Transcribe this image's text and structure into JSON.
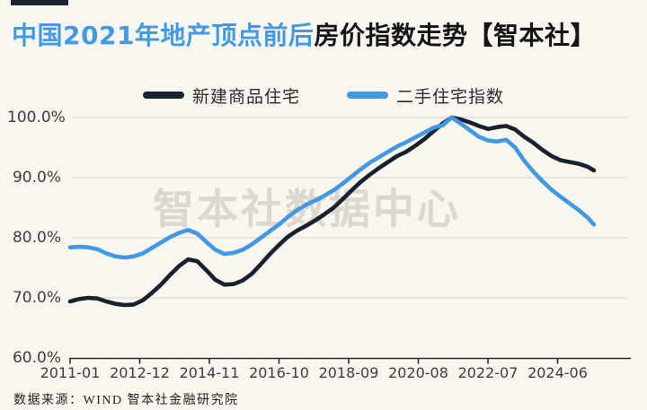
{
  "page": {
    "background": "#f9f6f0"
  },
  "header": {
    "accent_bar_color": "#1a2433",
    "title_part1": "中国2021年地产顶点前后",
    "title_part2": "房价指数走势【智本社】",
    "title_part1_color": "#429ae6",
    "title_part2_color": "#151515"
  },
  "watermark": {
    "text": "智本社数据中心"
  },
  "footer": {
    "source_text": "数据来源：WIND 智本社金融研究院"
  },
  "chart_data": {
    "type": "line",
    "title": "中国2021年地产顶点前后房价指数走势【智本社】",
    "grid": true,
    "legend_position": "top",
    "colors": {
      "new_homes": "#18222f",
      "secondhand": "#4298e3",
      "gridline": "#d9d6d0",
      "axis_line": "#2b2b2b",
      "tick_text": "#3d3d3d"
    },
    "y_axis": {
      "tick_labels": [
        "100.0%",
        "90.0%",
        "80.0%",
        "70.0%",
        "60.0%"
      ],
      "tick_values": [
        100,
        90,
        80,
        70,
        60
      ],
      "range": [
        60,
        100
      ],
      "unit": "%"
    },
    "x_axis": {
      "tick_labels": [
        "2011-01",
        "2012-12",
        "2014-11",
        "2016-10",
        "2018-09",
        "2020-08",
        "2022-07",
        "2024-06"
      ],
      "tick_months": [
        0,
        23,
        46,
        69,
        92,
        115,
        138,
        161
      ],
      "start_label": "2011-01",
      "end_month": 173
    },
    "legend": [
      {
        "name": "新建商品住宅",
        "color": "#18222f"
      },
      {
        "name": "二手住宅指数",
        "color": "#4298e3"
      }
    ],
    "series": [
      {
        "name": "新建商品住宅",
        "color": "#18222f",
        "points": [
          [
            0,
            69.4
          ],
          [
            3,
            69.8
          ],
          [
            6,
            70.0
          ],
          [
            9,
            69.9
          ],
          [
            12,
            69.4
          ],
          [
            15,
            69.0
          ],
          [
            18,
            68.8
          ],
          [
            21,
            68.9
          ],
          [
            24,
            69.6
          ],
          [
            27,
            70.8
          ],
          [
            30,
            72.2
          ],
          [
            33,
            73.8
          ],
          [
            36,
            75.3
          ],
          [
            39,
            76.4
          ],
          [
            42,
            76.1
          ],
          [
            45,
            74.6
          ],
          [
            48,
            73.0
          ],
          [
            51,
            72.2
          ],
          [
            54,
            72.3
          ],
          [
            57,
            72.9
          ],
          [
            60,
            74.0
          ],
          [
            63,
            75.6
          ],
          [
            66,
            77.3
          ],
          [
            69,
            78.8
          ],
          [
            72,
            80.2
          ],
          [
            75,
            81.2
          ],
          [
            78,
            82.0
          ],
          [
            81,
            82.9
          ],
          [
            84,
            83.9
          ],
          [
            87,
            85.0
          ],
          [
            90,
            86.4
          ],
          [
            93,
            87.9
          ],
          [
            96,
            89.3
          ],
          [
            99,
            90.5
          ],
          [
            102,
            91.6
          ],
          [
            105,
            92.6
          ],
          [
            108,
            93.6
          ],
          [
            111,
            94.3
          ],
          [
            114,
            95.3
          ],
          [
            117,
            96.4
          ],
          [
            120,
            97.7
          ],
          [
            123,
            99.0
          ],
          [
            126,
            100.0
          ],
          [
            129,
            99.7
          ],
          [
            132,
            99.2
          ],
          [
            135,
            98.6
          ],
          [
            138,
            98.1
          ],
          [
            141,
            98.4
          ],
          [
            144,
            98.6
          ],
          [
            147,
            98.0
          ],
          [
            150,
            96.8
          ],
          [
            153,
            95.8
          ],
          [
            156,
            94.6
          ],
          [
            159,
            93.6
          ],
          [
            162,
            92.9
          ],
          [
            165,
            92.6
          ],
          [
            168,
            92.3
          ],
          [
            171,
            91.8
          ],
          [
            173,
            91.2
          ]
        ]
      },
      {
        "name": "二手住宅指数",
        "color": "#4298e3",
        "points": [
          [
            0,
            78.4
          ],
          [
            3,
            78.5
          ],
          [
            6,
            78.4
          ],
          [
            9,
            78.1
          ],
          [
            12,
            77.4
          ],
          [
            15,
            76.9
          ],
          [
            18,
            76.7
          ],
          [
            21,
            76.9
          ],
          [
            24,
            77.4
          ],
          [
            27,
            78.3
          ],
          [
            30,
            79.2
          ],
          [
            33,
            80.1
          ],
          [
            36,
            80.8
          ],
          [
            39,
            81.3
          ],
          [
            42,
            80.7
          ],
          [
            45,
            79.3
          ],
          [
            48,
            78.0
          ],
          [
            51,
            77.3
          ],
          [
            54,
            77.5
          ],
          [
            57,
            78.0
          ],
          [
            60,
            78.9
          ],
          [
            63,
            80.0
          ],
          [
            66,
            81.1
          ],
          [
            69,
            82.2
          ],
          [
            72,
            83.5
          ],
          [
            75,
            84.6
          ],
          [
            78,
            85.5
          ],
          [
            81,
            86.2
          ],
          [
            84,
            87.0
          ],
          [
            87,
            87.9
          ],
          [
            90,
            89.0
          ],
          [
            93,
            90.2
          ],
          [
            96,
            91.4
          ],
          [
            99,
            92.5
          ],
          [
            102,
            93.4
          ],
          [
            105,
            94.3
          ],
          [
            108,
            95.2
          ],
          [
            111,
            95.9
          ],
          [
            114,
            96.7
          ],
          [
            117,
            97.5
          ],
          [
            120,
            98.3
          ],
          [
            123,
            98.7
          ],
          [
            126,
            100.0
          ],
          [
            129,
            99.0
          ],
          [
            132,
            97.9
          ],
          [
            135,
            96.8
          ],
          [
            138,
            96.2
          ],
          [
            141,
            96.0
          ],
          [
            144,
            96.3
          ],
          [
            147,
            95.0
          ],
          [
            150,
            92.8
          ],
          [
            153,
            91.0
          ],
          [
            156,
            89.4
          ],
          [
            159,
            88.0
          ],
          [
            162,
            86.8
          ],
          [
            165,
            85.7
          ],
          [
            168,
            84.6
          ],
          [
            171,
            83.3
          ],
          [
            173,
            82.2
          ]
        ]
      }
    ]
  }
}
